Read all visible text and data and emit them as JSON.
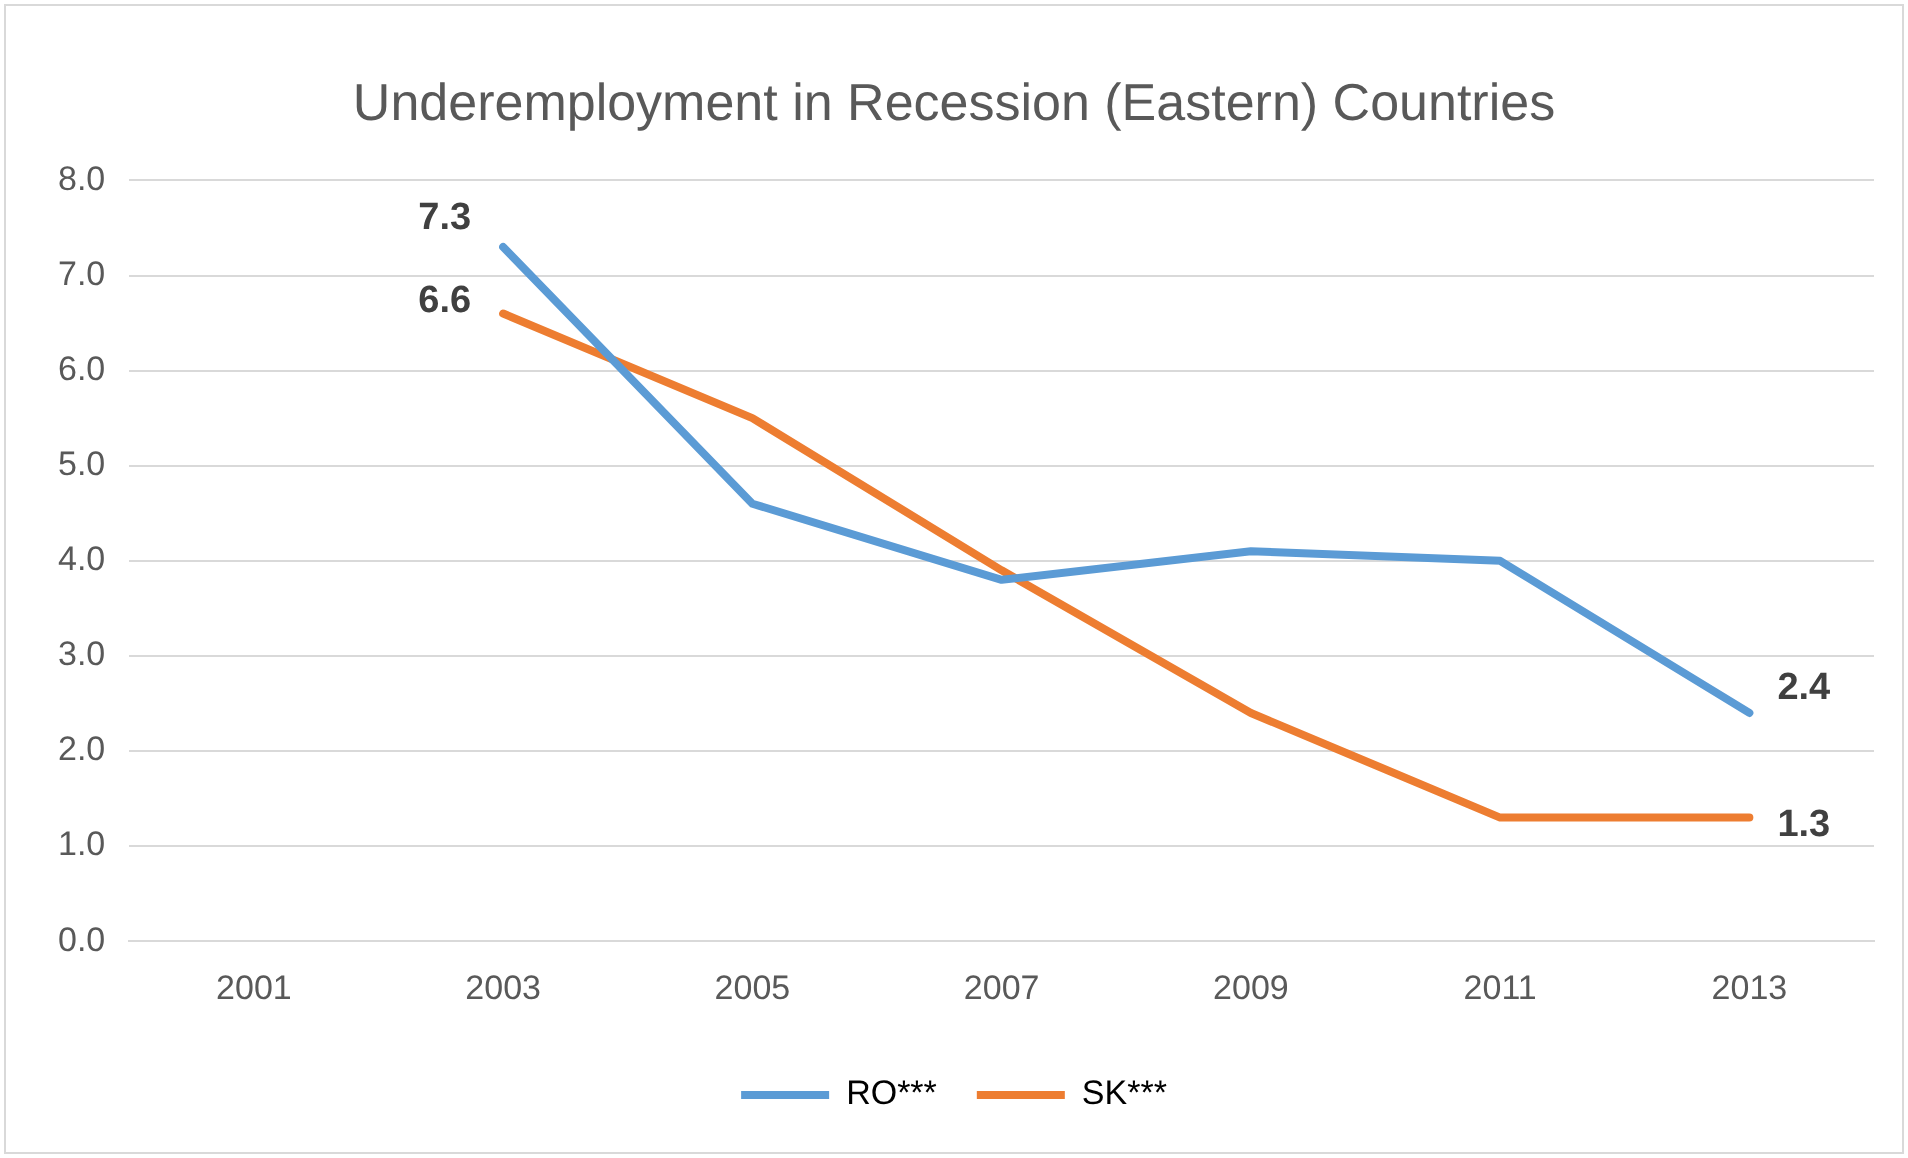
{
  "chart_data": {
    "type": "line",
    "title": "Underemployment in Recession (Eastern) Countries",
    "categories": [
      "2001",
      "2003",
      "2005",
      "2007",
      "2009",
      "2011",
      "2013"
    ],
    "series": [
      {
        "name": "RO***",
        "color": "#5b9bd5",
        "values": [
          null,
          7.3,
          4.6,
          3.8,
          4.1,
          4.0,
          2.4
        ],
        "value_labels": [
          null,
          "7.3",
          null,
          null,
          null,
          null,
          "2.4"
        ]
      },
      {
        "name": "SK***",
        "color": "#ed7d31",
        "values": [
          null,
          6.6,
          5.5,
          3.9,
          2.4,
          1.3,
          1.3
        ],
        "value_labels": [
          null,
          "6.6",
          null,
          null,
          null,
          null,
          "1.3"
        ]
      }
    ],
    "ylim": [
      0,
      8
    ],
    "yticks": [
      {
        "value": 0,
        "label": "0.0"
      },
      {
        "value": 1,
        "label": "1.0"
      },
      {
        "value": 2,
        "label": "2.0"
      },
      {
        "value": 3,
        "label": "3.0"
      },
      {
        "value": 4,
        "label": "4.0"
      },
      {
        "value": 5,
        "label": "5.0"
      },
      {
        "value": 6,
        "label": "6.0"
      },
      {
        "value": 7,
        "label": "7.0"
      },
      {
        "value": 8,
        "label": "8.0"
      }
    ],
    "grid": "y",
    "legend": "bottom",
    "marker": "none",
    "line_style": "solid"
  }
}
